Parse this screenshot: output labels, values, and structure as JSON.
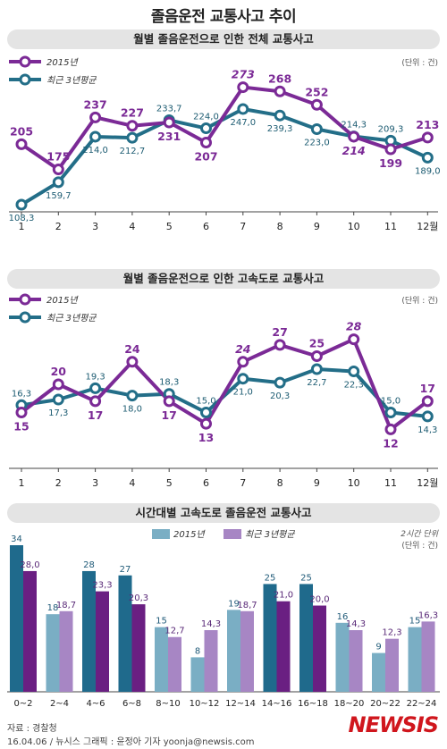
{
  "title": "졸음운전 교통사고 추이",
  "footer": {
    "source": "자료 : 경찰청",
    "credit": "16.04.06 / 뉴시스 그래픽 : 윤정아 기자 yoonja@newsis.com",
    "brand": "NEWSIS"
  },
  "colors": {
    "purple": "#7b2a96",
    "teal": "#236e88",
    "bar_dark_blue": "#1f6a8c",
    "bar_dark_purple": "#6a1f82",
    "bar_light_blue": "#7aaec4",
    "bar_light_purple": "#a786c4"
  },
  "chart_data": [
    {
      "type": "line",
      "title": "월별 졸음운전으로 인한 전체 교통사고",
      "unit_note": "(단위 : 건)",
      "categories": [
        "1",
        "2",
        "3",
        "4",
        "5",
        "6",
        "7",
        "8",
        "9",
        "10",
        "11",
        "12월"
      ],
      "ylim": [
        150,
        280
      ],
      "series": [
        {
          "name": "2015년",
          "values": [
            205,
            175,
            237,
            227,
            231,
            207,
            273,
            268,
            252,
            214,
            199,
            213
          ],
          "labels": [
            "205",
            "175",
            "237",
            "227",
            "231",
            "207",
            "273",
            "268",
            "252",
            "214",
            "199",
            "213"
          ]
        },
        {
          "name": "최근 3년평균",
          "values": [
            108.3,
            159.7,
            214.0,
            212.7,
            233.7,
            224.0,
            247.0,
            239.3,
            223.0,
            214.3,
            209.3,
            189.0
          ],
          "labels": [
            "108,3",
            "159,7",
            "214,0",
            "212,7",
            "233,7",
            "224,0",
            "247,0",
            "239,3",
            "223,0",
            "214,3",
            "209,3",
            "189,0"
          ]
        }
      ]
    },
    {
      "type": "line",
      "title": "월별 졸음운전으로 인한 고속도로 교통사고",
      "unit_note": "(단위 : 건)",
      "categories": [
        "1",
        "2",
        "3",
        "4",
        "5",
        "6",
        "7",
        "8",
        "9",
        "10",
        "11",
        "12월"
      ],
      "ylim": [
        10,
        30
      ],
      "series": [
        {
          "name": "2015년",
          "values": [
            15,
            20,
            17,
            24,
            17,
            13,
            24,
            27,
            25,
            28,
            12,
            17
          ],
          "labels": [
            "15",
            "20",
            "17",
            "24",
            "17",
            "13",
            "24",
            "27",
            "25",
            "28",
            "12",
            "17"
          ]
        },
        {
          "name": "최근 3년평균",
          "values": [
            16.3,
            17.3,
            19.3,
            18.0,
            18.3,
            15.0,
            21.0,
            20.3,
            22.7,
            22.3,
            15.0,
            14.3
          ],
          "labels": [
            "16,3",
            "17,3",
            "19,3",
            "18,0",
            "18,3",
            "15,0",
            "21,0",
            "20,3",
            "22,7",
            "22,3",
            "15,0",
            "14,3"
          ]
        }
      ]
    },
    {
      "type": "bar",
      "title": "시간대별 고속도로 졸음운전 교통사고",
      "unit_note_1": "2시간 단위",
      "unit_note_2": "(단위 : 건)",
      "categories": [
        "0~2",
        "2~4",
        "4~6",
        "6~8",
        "8~10",
        "10~12",
        "12~14",
        "14~16",
        "16~18",
        "18~20",
        "20~22",
        "22~24"
      ],
      "ylim": [
        0,
        34
      ],
      "highlight": [
        true,
        false,
        true,
        true,
        false,
        false,
        false,
        true,
        true,
        false,
        false,
        false
      ],
      "series": [
        {
          "name": "2015년",
          "values": [
            34,
            18,
            28,
            27,
            15,
            8,
            19,
            25,
            25,
            16,
            9,
            15
          ],
          "labels": [
            "34",
            "18",
            "28",
            "27",
            "15",
            "8",
            "19",
            "25",
            "25",
            "16",
            "9",
            "15"
          ]
        },
        {
          "name": "최근 3년평균",
          "values": [
            28.0,
            18.7,
            23.3,
            20.3,
            12.7,
            14.3,
            18.7,
            21.0,
            20.0,
            14.3,
            12.3,
            16.3
          ],
          "labels": [
            "28,0",
            "18,7",
            "23,3",
            "20,3",
            "12,7",
            "14,3",
            "18,7",
            "21,0",
            "20,0",
            "14,3",
            "12,3",
            "16,3"
          ]
        }
      ]
    }
  ]
}
